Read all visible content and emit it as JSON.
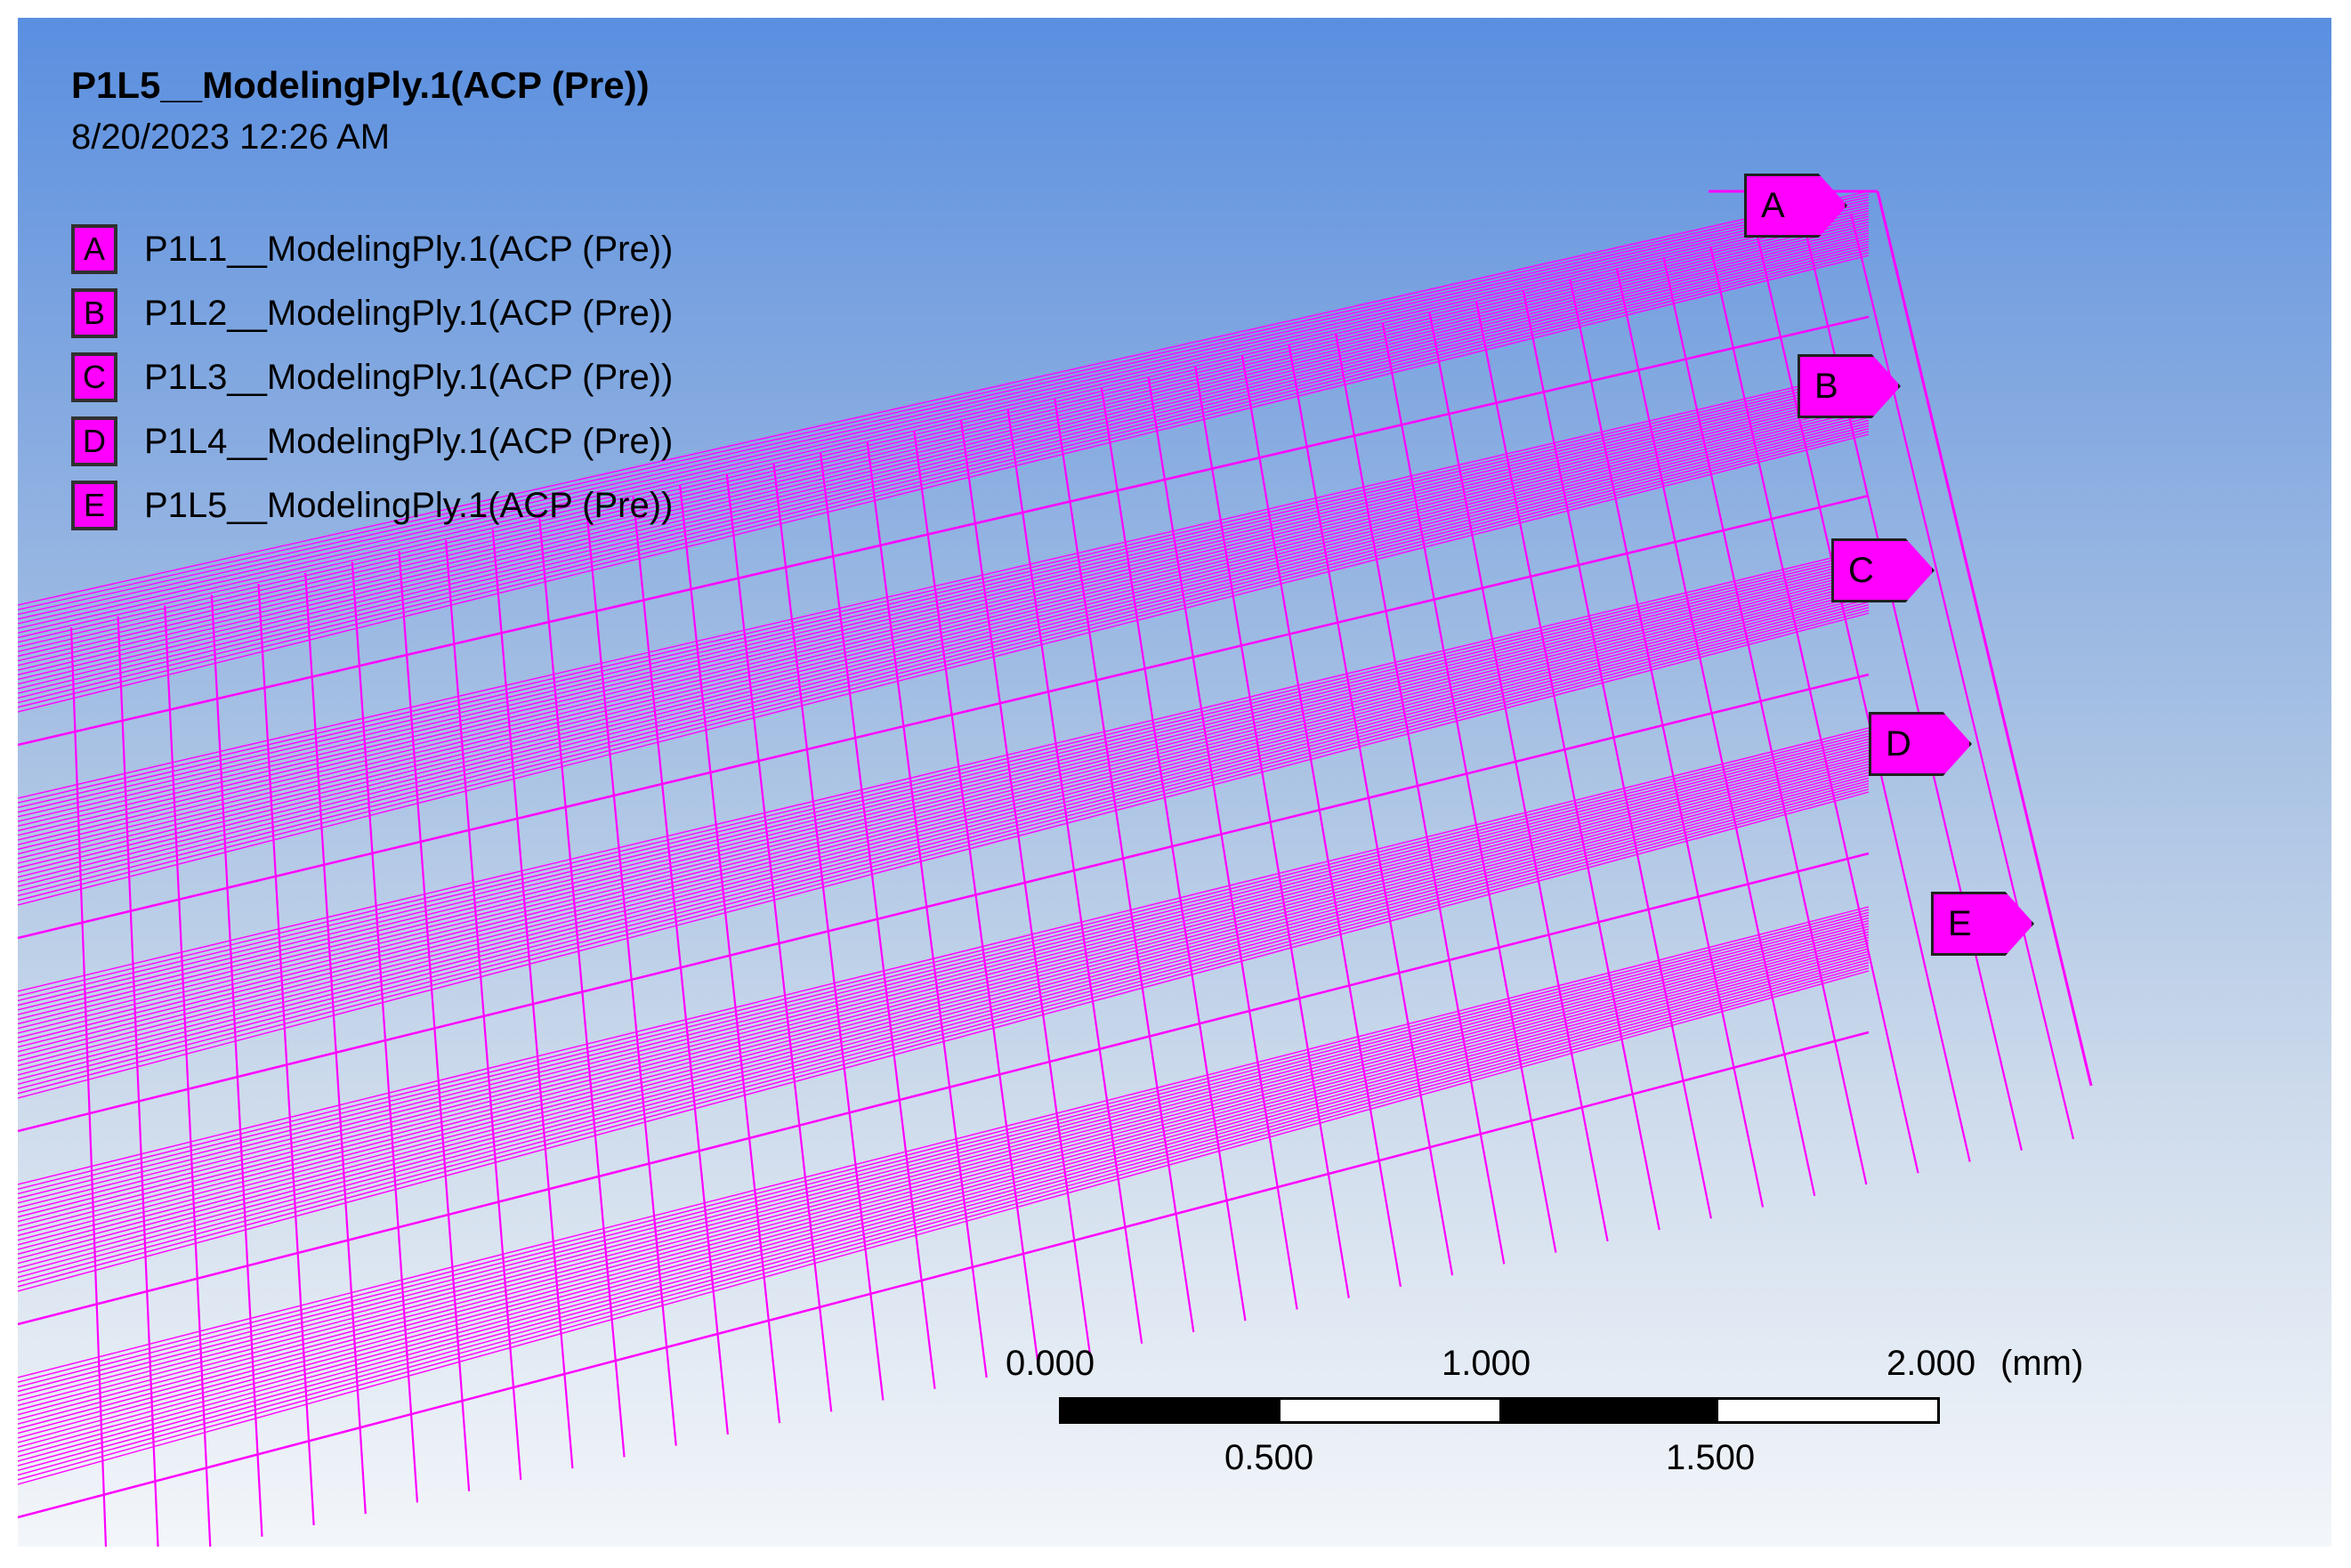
{
  "viewport": {
    "title": "P1L5__ModelingPly.1(ACP (Pre))",
    "timestamp": "8/20/2023 12:26 AM"
  },
  "legend": {
    "items": [
      {
        "key": "A",
        "label": "P1L1__ModelingPly.1(ACP (Pre))"
      },
      {
        "key": "B",
        "label": "P1L2__ModelingPly.1(ACP (Pre))"
      },
      {
        "key": "C",
        "label": "P1L3__ModelingPly.1(ACP (Pre))"
      },
      {
        "key": "D",
        "label": "P1L4__ModelingPly.1(ACP (Pre))"
      },
      {
        "key": "E",
        "label": "P1L5__ModelingPly.1(ACP (Pre))"
      }
    ]
  },
  "scale": {
    "tick_0": "0.000",
    "tick_1": "1.000",
    "tick_2": "2.000",
    "unit": "(mm)",
    "tick_05": "0.500",
    "tick_15": "1.500"
  },
  "colors": {
    "mesh": "#ff00ff",
    "background_top": "#5a8fe0",
    "background_bottom": "#f3f6fa"
  }
}
